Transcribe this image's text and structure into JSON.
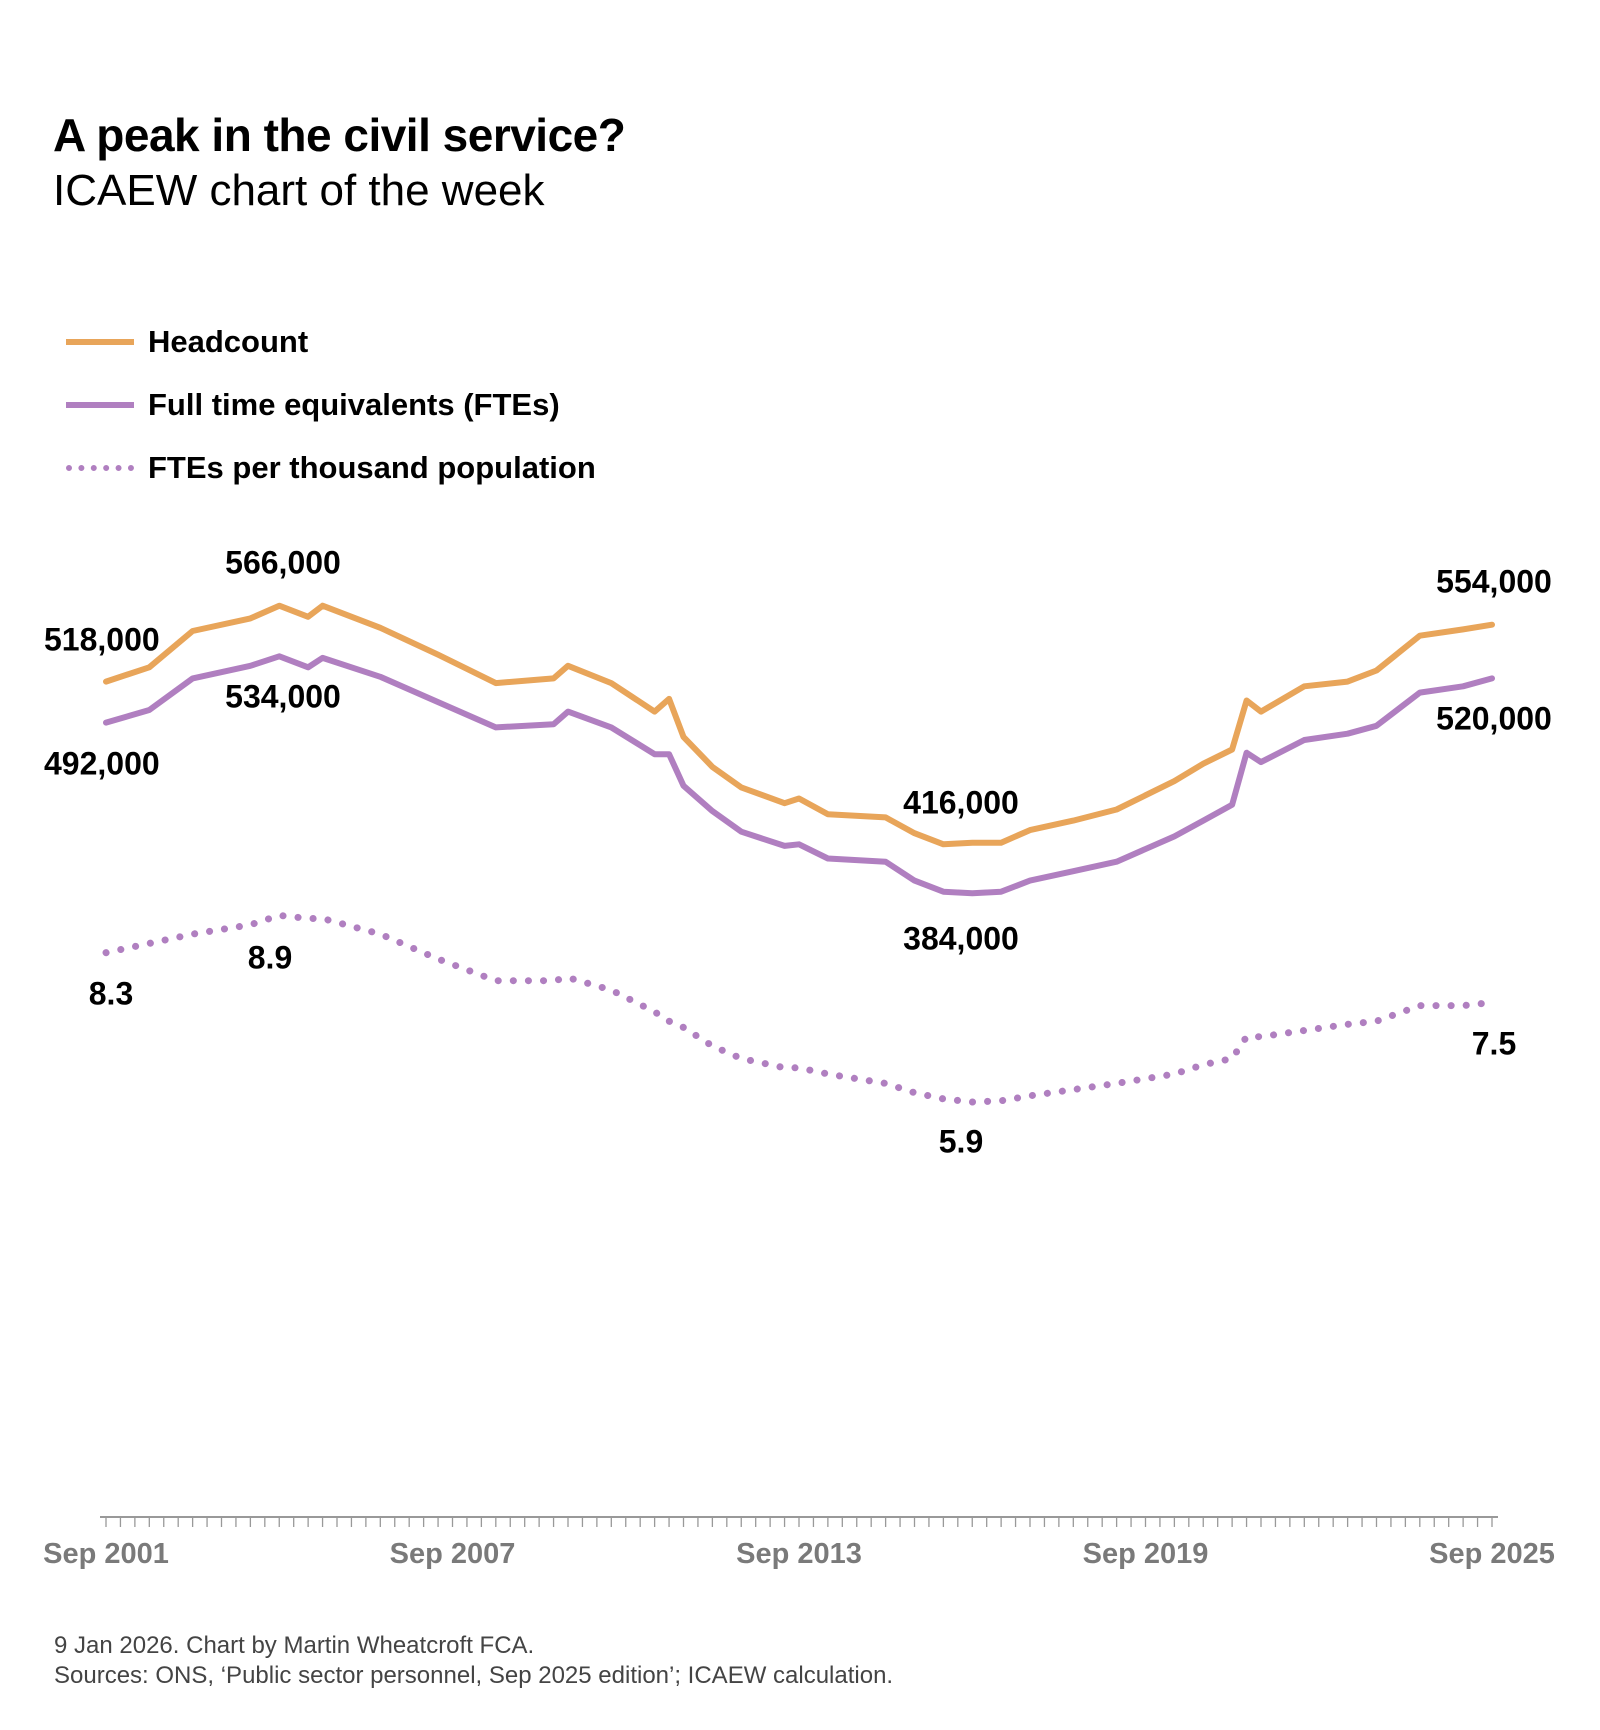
{
  "header": {
    "title": "A peak in the civil service?",
    "subtitle": "ICAEW chart of the week"
  },
  "footer": {
    "line1": "9 Jan 2026.   Chart by Martin Wheatcroft FCA.",
    "line2": "Sources: ONS, ‘Public sector personnel, Sep 2025 edition’; ICAEW calculation."
  },
  "chart_data": {
    "type": "line",
    "x_tick_labels": [
      "Sep 2001",
      "Sep 2007",
      "Sep 2013",
      "Sep 2019",
      "Sep 2025"
    ],
    "x_range": [
      "2001-09",
      "2025-09"
    ],
    "x_minor_ticks": "quarterly",
    "grid": false,
    "legend_placement": "top-left",
    "y_axis_visible": false,
    "colors": {
      "headcount": "#E8A55A",
      "fte": "#B07FC0",
      "fte_per_thousand": "#B07FC0"
    },
    "x": [
      "2001-09",
      "2002-06",
      "2003-03",
      "2004-03",
      "2004-09",
      "2005-03",
      "2005-06",
      "2006-06",
      "2007-06",
      "2008-06",
      "2009-06",
      "2009-09",
      "2010-06",
      "2011-03",
      "2011-06",
      "2011-09",
      "2012-03",
      "2012-09",
      "2013-06",
      "2013-09",
      "2014-03",
      "2015-03",
      "2015-09",
      "2016-03",
      "2016-09",
      "2017-03",
      "2017-09",
      "2018-06",
      "2019-03",
      "2020-03",
      "2020-09",
      "2021-03",
      "2021-06",
      "2021-09",
      "2022-06",
      "2023-03",
      "2023-09",
      "2024-06",
      "2025-03",
      "2025-09"
    ],
    "series": [
      {
        "name": "Headcount",
        "style": "solid",
        "axis": "left",
        "values": [
          518000,
          527000,
          550000,
          558000,
          566000,
          559000,
          566000,
          552000,
          535000,
          517000,
          520000,
          528000,
          517000,
          499000,
          507000,
          483000,
          464000,
          451000,
          441000,
          444000,
          434000,
          432000,
          422000,
          415000,
          416000,
          416000,
          424000,
          430000,
          437000,
          455000,
          466000,
          475000,
          506000,
          499000,
          515000,
          518000,
          525000,
          547000,
          551000,
          554000
        ]
      },
      {
        "name": "Full time equivalents (FTEs)",
        "style": "solid",
        "axis": "left",
        "values": [
          492000,
          500000,
          520000,
          528000,
          534000,
          527000,
          533000,
          521000,
          505000,
          489000,
          491000,
          499000,
          489000,
          472000,
          472000,
          452000,
          436000,
          423000,
          414000,
          415000,
          406000,
          404000,
          392000,
          385000,
          384000,
          385000,
          392000,
          398000,
          404000,
          420000,
          430000,
          440000,
          473000,
          467000,
          481000,
          485000,
          490000,
          511000,
          515000,
          520000
        ]
      },
      {
        "name": "FTEs per thousand population",
        "style": "dotted",
        "axis": "right",
        "values": [
          8.3,
          8.45,
          8.6,
          8.75,
          8.9,
          8.85,
          8.85,
          8.6,
          8.2,
          7.85,
          7.85,
          7.9,
          7.7,
          7.35,
          7.2,
          7.1,
          6.8,
          6.6,
          6.45,
          6.45,
          6.35,
          6.2,
          6.05,
          5.95,
          5.9,
          5.92,
          6.0,
          6.1,
          6.2,
          6.35,
          6.5,
          6.6,
          6.95,
          6.95,
          7.05,
          7.15,
          7.2,
          7.45,
          7.45,
          7.5
        ]
      }
    ],
    "ylim_left": [
      0,
      600000
    ],
    "ylim_right": [
      0,
      10
    ],
    "annotations": [
      {
        "text": "518,000",
        "series": "Headcount",
        "x": "2001-09"
      },
      {
        "text": "566,000",
        "series": "Headcount",
        "x": "2004-09"
      },
      {
        "text": "416,000",
        "series": "Headcount",
        "x": "2016-09"
      },
      {
        "text": "554,000",
        "series": "Headcount",
        "x": "2025-09"
      },
      {
        "text": "492,000",
        "series": "Full time equivalents (FTEs)",
        "x": "2001-09"
      },
      {
        "text": "534,000",
        "series": "Full time equivalents (FTEs)",
        "x": "2004-09"
      },
      {
        "text": "384,000",
        "series": "Full time equivalents (FTEs)",
        "x": "2016-09"
      },
      {
        "text": "520,000",
        "series": "Full time equivalents (FTEs)",
        "x": "2025-09"
      },
      {
        "text": "8.3",
        "series": "FTEs per thousand population",
        "x": "2001-09"
      },
      {
        "text": "8.9",
        "series": "FTEs per thousand population",
        "x": "2004-09"
      },
      {
        "text": "5.9",
        "series": "FTEs per thousand population",
        "x": "2016-09"
      },
      {
        "text": "7.5",
        "series": "FTEs per thousand population",
        "x": "2025-09"
      }
    ]
  }
}
